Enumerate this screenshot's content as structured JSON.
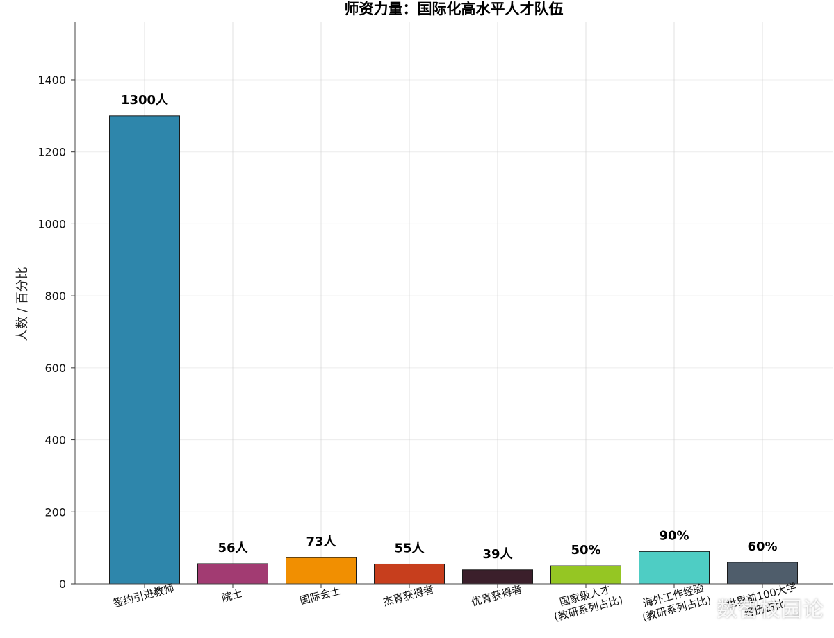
{
  "chart_data": {
    "type": "bar",
    "title": "师资力量：国际化高水平人才队伍",
    "ylabel": "人数 / 百分比",
    "xlabel": "",
    "ylim": [
      0,
      1560
    ],
    "yticks": [
      0,
      200,
      400,
      600,
      800,
      1000,
      1200,
      1400
    ],
    "grid": true,
    "categories": [
      [
        "签约引进教师"
      ],
      [
        "院士"
      ],
      [
        "国际会士"
      ],
      [
        "杰青获得者"
      ],
      [
        "优青获得者"
      ],
      [
        "国家级人才",
        "(教研系列占比)"
      ],
      [
        "海外工作经验",
        "(教研系列占比)"
      ],
      [
        "世界前100大学",
        "经历占比"
      ]
    ],
    "values": [
      1300,
      56,
      73,
      55,
      39,
      50,
      90,
      60
    ],
    "data_labels": [
      "1300人",
      "56人",
      "73人",
      "55人",
      "39人",
      "50%",
      "90%",
      "60%"
    ],
    "colors": [
      "#2e86ab",
      "#a23b72",
      "#f18f01",
      "#c73e1d",
      "#3b1f2b",
      "#95c623",
      "#4ecdc4",
      "#4f5d6b"
    ]
  },
  "watermark": "数智校园论"
}
